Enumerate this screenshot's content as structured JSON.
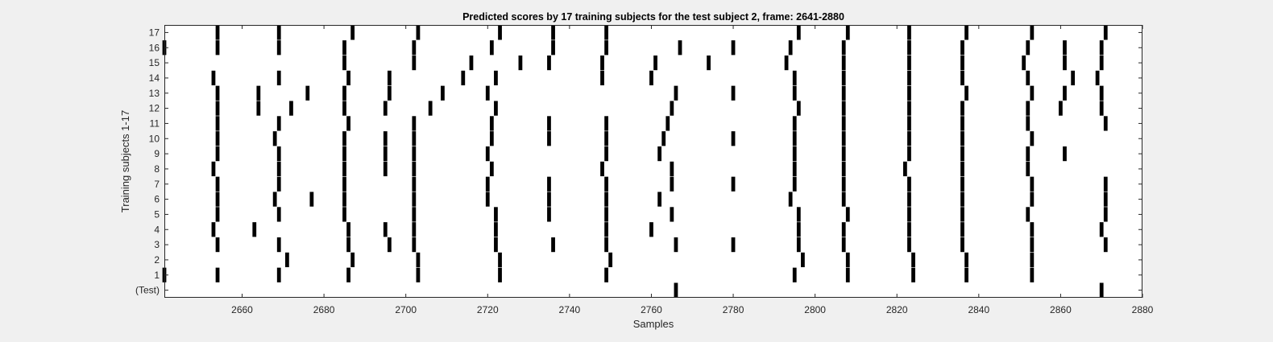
{
  "chart_data": {
    "type": "event-raster",
    "title": "Predicted scores by 17 training subjects for the test subject 2, frame: 2641-2880",
    "xlabel": "Samples",
    "ylabel": "Training subjects 1-17",
    "xlim": [
      2641,
      2880
    ],
    "x_ticks": [
      "2660",
      "2680",
      "2700",
      "2720",
      "2740",
      "2760",
      "2780",
      "2800",
      "2820",
      "2840",
      "2860",
      "2880"
    ],
    "y_tick_labels": [
      "(Test)",
      "1",
      "2",
      "3",
      "4",
      "5",
      "6",
      "7",
      "8",
      "9",
      "10",
      "11",
      "12",
      "13",
      "14",
      "15",
      "16",
      "17"
    ],
    "grid": false,
    "mark_color": "#000000",
    "rows": [
      {
        "label": "17",
        "x": [
          2654,
          2669,
          2687,
          2703,
          2723,
          2736,
          2749,
          2796,
          2808,
          2823,
          2837,
          2853,
          2871
        ]
      },
      {
        "label": "16",
        "x": [
          2641,
          2654,
          2669,
          2685,
          2702,
          2721,
          2736,
          2749,
          2767,
          2780,
          2794,
          2807,
          2823,
          2836,
          2852,
          2861,
          2870
        ]
      },
      {
        "label": "15",
        "x": [
          2685,
          2702,
          2716,
          2728,
          2735,
          2748,
          2761,
          2774,
          2793,
          2807,
          2823,
          2836,
          2851,
          2861,
          2870
        ]
      },
      {
        "label": "14",
        "x": [
          2653,
          2669,
          2686,
          2696,
          2714,
          2722,
          2748,
          2760,
          2795,
          2807,
          2823,
          2836,
          2852,
          2863,
          2869
        ]
      },
      {
        "label": "13",
        "x": [
          2654,
          2664,
          2676,
          2685,
          2696,
          2709,
          2720,
          2766,
          2780,
          2795,
          2807,
          2823,
          2837,
          2853,
          2861,
          2870
        ]
      },
      {
        "label": "12",
        "x": [
          2654,
          2664,
          2672,
          2685,
          2695,
          2706,
          2722,
          2765,
          2796,
          2807,
          2823,
          2836,
          2852,
          2860,
          2870
        ]
      },
      {
        "label": "11",
        "x": [
          2654,
          2669,
          2686,
          2702,
          2721,
          2735,
          2749,
          2764,
          2795,
          2807,
          2823,
          2836,
          2852,
          2871
        ]
      },
      {
        "label": "10",
        "x": [
          2654,
          2668,
          2685,
          2695,
          2702,
          2721,
          2735,
          2749,
          2763,
          2780,
          2795,
          2807,
          2823,
          2836,
          2853
        ]
      },
      {
        "label": "9",
        "x": [
          2654,
          2669,
          2685,
          2695,
          2702,
          2720,
          2749,
          2762,
          2795,
          2807,
          2823,
          2836,
          2852,
          2861
        ]
      },
      {
        "label": "8",
        "x": [
          2653,
          2669,
          2685,
          2695,
          2702,
          2721,
          2748,
          2765,
          2795,
          2807,
          2822,
          2836,
          2852
        ]
      },
      {
        "label": "7",
        "x": [
          2654,
          2669,
          2685,
          2702,
          2720,
          2735,
          2749,
          2765,
          2780,
          2795,
          2807,
          2823,
          2836,
          2853,
          2871
        ]
      },
      {
        "label": "6",
        "x": [
          2654,
          2668,
          2677,
          2685,
          2702,
          2720,
          2735,
          2749,
          2762,
          2794,
          2807,
          2823,
          2836,
          2853,
          2871
        ]
      },
      {
        "label": "5",
        "x": [
          2654,
          2669,
          2685,
          2702,
          2722,
          2735,
          2749,
          2765,
          2796,
          2808,
          2823,
          2836,
          2852,
          2871
        ]
      },
      {
        "label": "4",
        "x": [
          2653,
          2663,
          2686,
          2695,
          2702,
          2722,
          2749,
          2760,
          2796,
          2807,
          2823,
          2836,
          2853,
          2870
        ]
      },
      {
        "label": "3",
        "x": [
          2654,
          2669,
          2686,
          2696,
          2702,
          2722,
          2736,
          2749,
          2766,
          2780,
          2796,
          2807,
          2823,
          2836,
          2853,
          2871
        ]
      },
      {
        "label": "2",
        "x": [
          2671,
          2687,
          2703,
          2723,
          2750,
          2797,
          2808,
          2824,
          2837,
          2853
        ]
      },
      {
        "label": "1",
        "x": [
          2641,
          2654,
          2669,
          2686,
          2703,
          2723,
          2749,
          2795,
          2808,
          2824,
          2837,
          2853
        ]
      },
      {
        "label": "(Test)",
        "x": [
          2766,
          2870
        ]
      }
    ]
  }
}
